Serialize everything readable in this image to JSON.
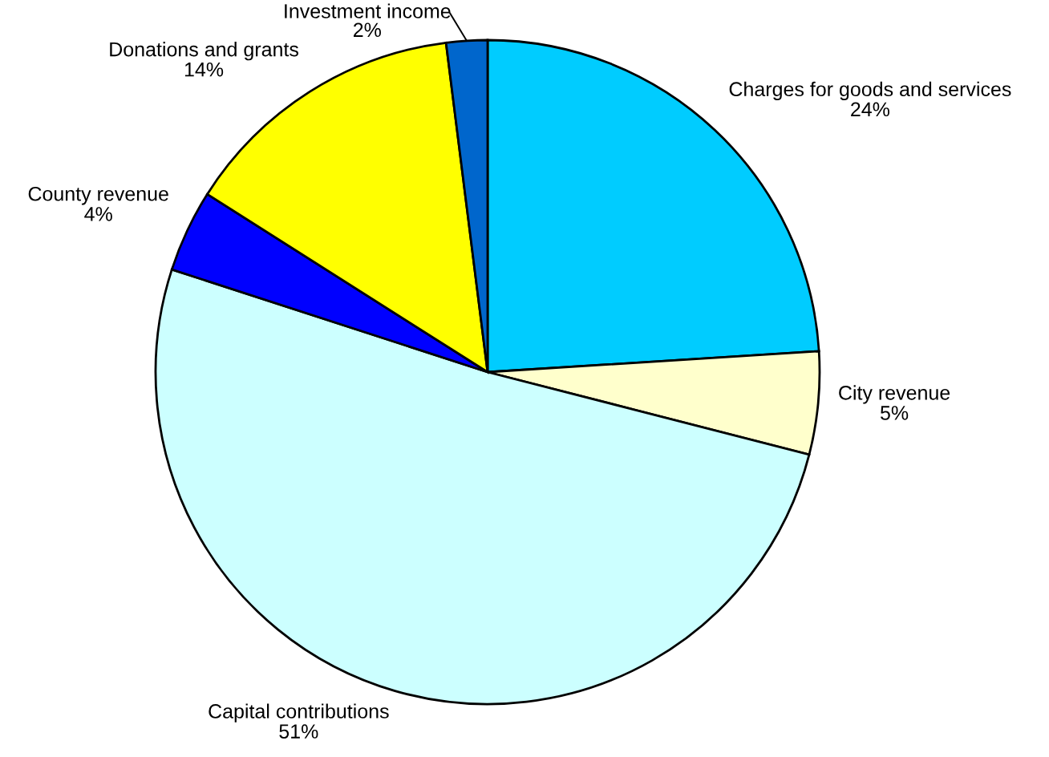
{
  "chart_data": {
    "type": "pie",
    "categories": [
      "Charges for goods and services",
      "City revenue",
      "Capital contributions",
      "County revenue",
      "Donations and grants",
      "Investment income"
    ],
    "values": [
      24,
      5,
      51,
      4,
      14,
      2
    ],
    "value_labels": [
      "24%",
      "5%",
      "51%",
      "4%",
      "14%",
      "2%"
    ],
    "colors": [
      "#00ccff",
      "#ffffcc",
      "#ccffff",
      "#0000ff",
      "#ffff00",
      "#0066cc"
    ]
  }
}
